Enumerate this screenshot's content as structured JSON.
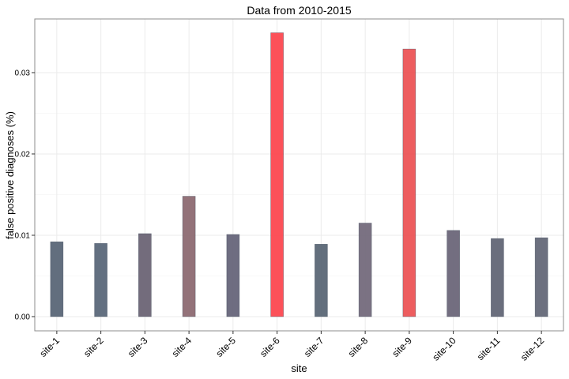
{
  "chart_data": {
    "type": "bar",
    "title": "Data from 2010-2015",
    "xlabel": "site",
    "ylabel": "false positive diagnoses (%)",
    "categories": [
      "site-1",
      "site-2",
      "site-3",
      "site-4",
      "site-5",
      "site-6",
      "site-7",
      "site-8",
      "site-9",
      "site-10",
      "site-11",
      "site-12"
    ],
    "values": [
      0.0092,
      0.009,
      0.0102,
      0.0148,
      0.0101,
      0.0349,
      0.0089,
      0.0115,
      0.0329,
      0.0106,
      0.0096,
      0.0097
    ],
    "colors": [
      "#5a6677",
      "#5b687a",
      "#6b6475",
      "#8d6a72",
      "#66657a",
      "#fc4850",
      "#5b6776",
      "#746a7c",
      "#ec5456",
      "#6c6679",
      "#626676",
      "#646878"
    ],
    "ylim": [
      -0.00175,
      0.0366
    ],
    "yticks": [
      0.0,
      0.01,
      0.02,
      0.03
    ],
    "ytick_labels": [
      "0.00",
      "0.01",
      "0.02",
      "0.03"
    ],
    "grid": true,
    "legend": "none"
  }
}
